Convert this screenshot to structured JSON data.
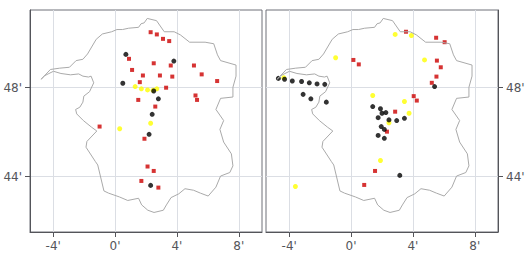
{
  "chart_data": [
    {
      "type": "scatter",
      "xlim": [
        -5.5,
        9.5
      ],
      "ylim": [
        41.5,
        51.5
      ],
      "xticks": [
        {
          "value": -4,
          "label": "-4'"
        },
        {
          "value": 0,
          "label": "0'"
        },
        {
          "value": 4,
          "label": "4'"
        },
        {
          "value": 8,
          "label": "8'"
        }
      ],
      "yticks": [
        {
          "value": 44,
          "label": "44'"
        },
        {
          "value": 48,
          "label": "48'"
        }
      ],
      "grid": true,
      "series": [
        {
          "type": "line",
          "color": "#aaaaaa",
          "x": [
            -4.78,
            -4.55,
            -4.33,
            -3.98,
            -3.5,
            -2.88,
            -2.35,
            -2.08,
            -1.72,
            -1.55,
            -1.38,
            -1.65,
            -2.02,
            -2.08,
            -2.28,
            -2.55,
            -2.48,
            -2.05,
            -1.52,
            -1.18,
            -1.82,
            -1.88,
            -1.28,
            -1.12,
            -0.72,
            -0.42,
            0.28,
            0.82,
            1.52,
            1.72,
            2.12,
            2.52,
            3.12,
            3.32,
            3.62,
            4.12,
            4.52,
            5.08,
            5.52,
            6.02,
            6.52,
            6.82,
            7.42,
            7.62,
            7.52,
            7.02,
            6.78,
            7.02,
            6.52,
            6.82,
            7.62,
            7.62,
            7.82,
            7.82,
            6.82,
            6.62,
            6.38,
            5.82,
            4.82,
            4.22,
            3.82,
            3.18,
            2.68,
            2.08,
            1.88,
            1.68,
            1.52,
            0.88,
            0.48,
            0.12,
            -0.22,
            -0.82,
            -1.22,
            -1.78,
            -2.08,
            -2.52,
            -2.95,
            -3.58,
            -4.18,
            -4.78
          ],
          "values": [
            48.38,
            48.54,
            48.62,
            48.74,
            48.64,
            48.58,
            48.62,
            48.52,
            48.48,
            48.52,
            48.22,
            47.82,
            47.62,
            47.35,
            47.12,
            47.02,
            46.82,
            46.52,
            46.22,
            46.05,
            45.58,
            45.32,
            44.68,
            44.52,
            43.35,
            43.25,
            43.08,
            42.92,
            43.02,
            42.72,
            42.48,
            42.38,
            42.48,
            42.72,
            43.05,
            43.22,
            43.45,
            43.38,
            43.25,
            43.12,
            43.52,
            44.02,
            44.18,
            44.48,
            45.02,
            45.55,
            46.12,
            46.52,
            47.02,
            47.52,
            47.58,
            48.02,
            48.52,
            49.02,
            49.22,
            49.48,
            49.98,
            50.05,
            50.05,
            50.38,
            50.52,
            50.52,
            51.02,
            51.12,
            50.92,
            50.88,
            50.72,
            50.68,
            50.62,
            50.62,
            50.52,
            50.42,
            50.18,
            49.52,
            49.28,
            49.22,
            48.92,
            48.88,
            48.82,
            48.38
          ]
        },
        {
          "type": "scatter",
          "marker": "square",
          "color": "#cc0000",
          "x": [
            2.3,
            2.7,
            3.1,
            3.5,
            0.9,
            2.5,
            3.6,
            5.1,
            1.1,
            1.8,
            2.9,
            3.7,
            5.6,
            6.6,
            1.6,
            3.3,
            5.2,
            5.3,
            1.5,
            2.6,
            -1.0,
            1.9,
            2.1,
            2.5,
            1.7,
            2.8
          ],
          "values": [
            50.5,
            50.4,
            50.2,
            50.1,
            49.3,
            49.1,
            49.0,
            49.0,
            48.8,
            48.55,
            48.55,
            48.5,
            48.6,
            48.3,
            48.25,
            48.0,
            47.65,
            47.45,
            47.45,
            47.15,
            46.25,
            45.7,
            44.45,
            44.25,
            43.8,
            43.5
          ]
        },
        {
          "type": "scatter",
          "marker": "circle",
          "color": "#ffff00",
          "x": [
            1.3,
            1.7,
            2.1,
            2.45,
            2.7,
            2.3,
            0.3
          ],
          "values": [
            48.05,
            47.95,
            47.9,
            47.88,
            47.95,
            46.4,
            46.15
          ]
        },
        {
          "type": "scatter",
          "marker": "circle",
          "color": "#000000",
          "x": [
            0.7,
            3.8,
            0.5,
            2.5,
            2.8,
            2.4,
            2.2,
            2.3
          ],
          "values": [
            49.5,
            49.2,
            48.2,
            47.85,
            47.5,
            46.8,
            45.9,
            43.6
          ]
        }
      ]
    },
    {
      "type": "scatter",
      "xlim": [
        -5.5,
        9.5
      ],
      "ylim": [
        41.5,
        51.5
      ],
      "xticks": [
        {
          "value": -4,
          "label": "-4'"
        },
        {
          "value": 0,
          "label": "0'"
        },
        {
          "value": 4,
          "label": "4'"
        },
        {
          "value": 8,
          "label": "8'"
        }
      ],
      "yticks": [
        {
          "value": 44,
          "label": "44'"
        },
        {
          "value": 48,
          "label": "48'"
        }
      ],
      "grid": true,
      "series": [
        {
          "type": "line",
          "color": "#aaaaaa",
          "x": [
            -4.78,
            -4.55,
            -4.33,
            -3.98,
            -3.5,
            -2.88,
            -2.35,
            -2.08,
            -1.72,
            -1.55,
            -1.38,
            -1.65,
            -2.02,
            -2.08,
            -2.28,
            -2.55,
            -2.48,
            -2.05,
            -1.52,
            -1.18,
            -1.82,
            -1.88,
            -1.28,
            -1.12,
            -0.72,
            -0.42,
            0.28,
            0.82,
            1.52,
            1.72,
            2.12,
            2.52,
            3.12,
            3.32,
            3.62,
            4.12,
            4.52,
            5.08,
            5.52,
            6.02,
            6.52,
            6.82,
            7.42,
            7.62,
            7.52,
            7.02,
            6.78,
            7.02,
            6.52,
            6.82,
            7.62,
            7.62,
            7.82,
            7.82,
            6.82,
            6.62,
            6.38,
            5.82,
            4.82,
            4.22,
            3.82,
            3.18,
            2.68,
            2.08,
            1.88,
            1.68,
            1.52,
            0.88,
            0.48,
            0.12,
            -0.22,
            -0.82,
            -1.22,
            -1.78,
            -2.08,
            -2.52,
            -2.95,
            -3.58,
            -4.18,
            -4.78
          ],
          "values": [
            48.38,
            48.54,
            48.62,
            48.74,
            48.64,
            48.58,
            48.62,
            48.52,
            48.48,
            48.52,
            48.22,
            47.82,
            47.62,
            47.35,
            47.12,
            47.02,
            46.82,
            46.52,
            46.22,
            46.05,
            45.58,
            45.32,
            44.68,
            44.52,
            43.35,
            43.25,
            43.08,
            42.92,
            43.02,
            42.72,
            42.48,
            42.38,
            42.48,
            42.72,
            43.05,
            43.22,
            43.45,
            43.38,
            43.25,
            43.12,
            43.52,
            44.02,
            44.18,
            44.48,
            45.02,
            45.55,
            46.12,
            46.52,
            47.02,
            47.52,
            47.58,
            48.02,
            48.52,
            49.02,
            49.22,
            49.48,
            49.98,
            50.05,
            50.05,
            50.38,
            50.52,
            50.52,
            51.02,
            51.12,
            50.92,
            50.88,
            50.72,
            50.68,
            50.62,
            50.62,
            50.52,
            50.42,
            50.18,
            49.52,
            49.28,
            49.22,
            48.92,
            48.88,
            48.82,
            48.38
          ]
        },
        {
          "type": "scatter",
          "marker": "square",
          "color": "#cc0000",
          "x": [
            3.55,
            5.5,
            6.05,
            0.15,
            0.5,
            5.55,
            5.8,
            5.52,
            5.22,
            4.05,
            4.25,
            2.85,
            2.32,
            1.55,
            0.85
          ],
          "values": [
            50.52,
            50.25,
            50.05,
            49.25,
            49.05,
            49.22,
            48.92,
            48.5,
            48.22,
            47.62,
            47.42,
            46.92,
            46.02,
            44.25,
            43.62
          ]
        },
        {
          "type": "scatter",
          "marker": "circle",
          "color": "#ffff00",
          "x": [
            -4.35,
            -1.0,
            2.85,
            3.9,
            4.75,
            1.4,
            3.45,
            3.75,
            2.45,
            1.9,
            -3.6
          ],
          "values": [
            48.45,
            49.35,
            50.4,
            50.35,
            49.25,
            47.65,
            47.38,
            46.85,
            46.42,
            44.72,
            43.55
          ]
        },
        {
          "type": "scatter",
          "marker": "circle",
          "color": "#000000",
          "x": [
            -4.7,
            -4.3,
            -3.8,
            -3.2,
            -2.7,
            -1.7,
            -2.2,
            -3.1,
            -2.6,
            -1.6,
            1.4,
            1.9,
            2.0,
            2.25,
            1.75,
            2.45,
            2.95,
            3.45,
            1.95,
            2.15,
            1.75,
            2.15,
            3.15,
            5.4
          ],
          "values": [
            48.42,
            48.38,
            48.3,
            48.28,
            48.22,
            48.15,
            48.17,
            47.7,
            47.5,
            47.35,
            47.15,
            47.05,
            46.85,
            46.88,
            46.65,
            46.55,
            46.52,
            46.62,
            46.25,
            46.12,
            45.85,
            45.72,
            44.05,
            48.05
          ]
        }
      ]
    }
  ]
}
